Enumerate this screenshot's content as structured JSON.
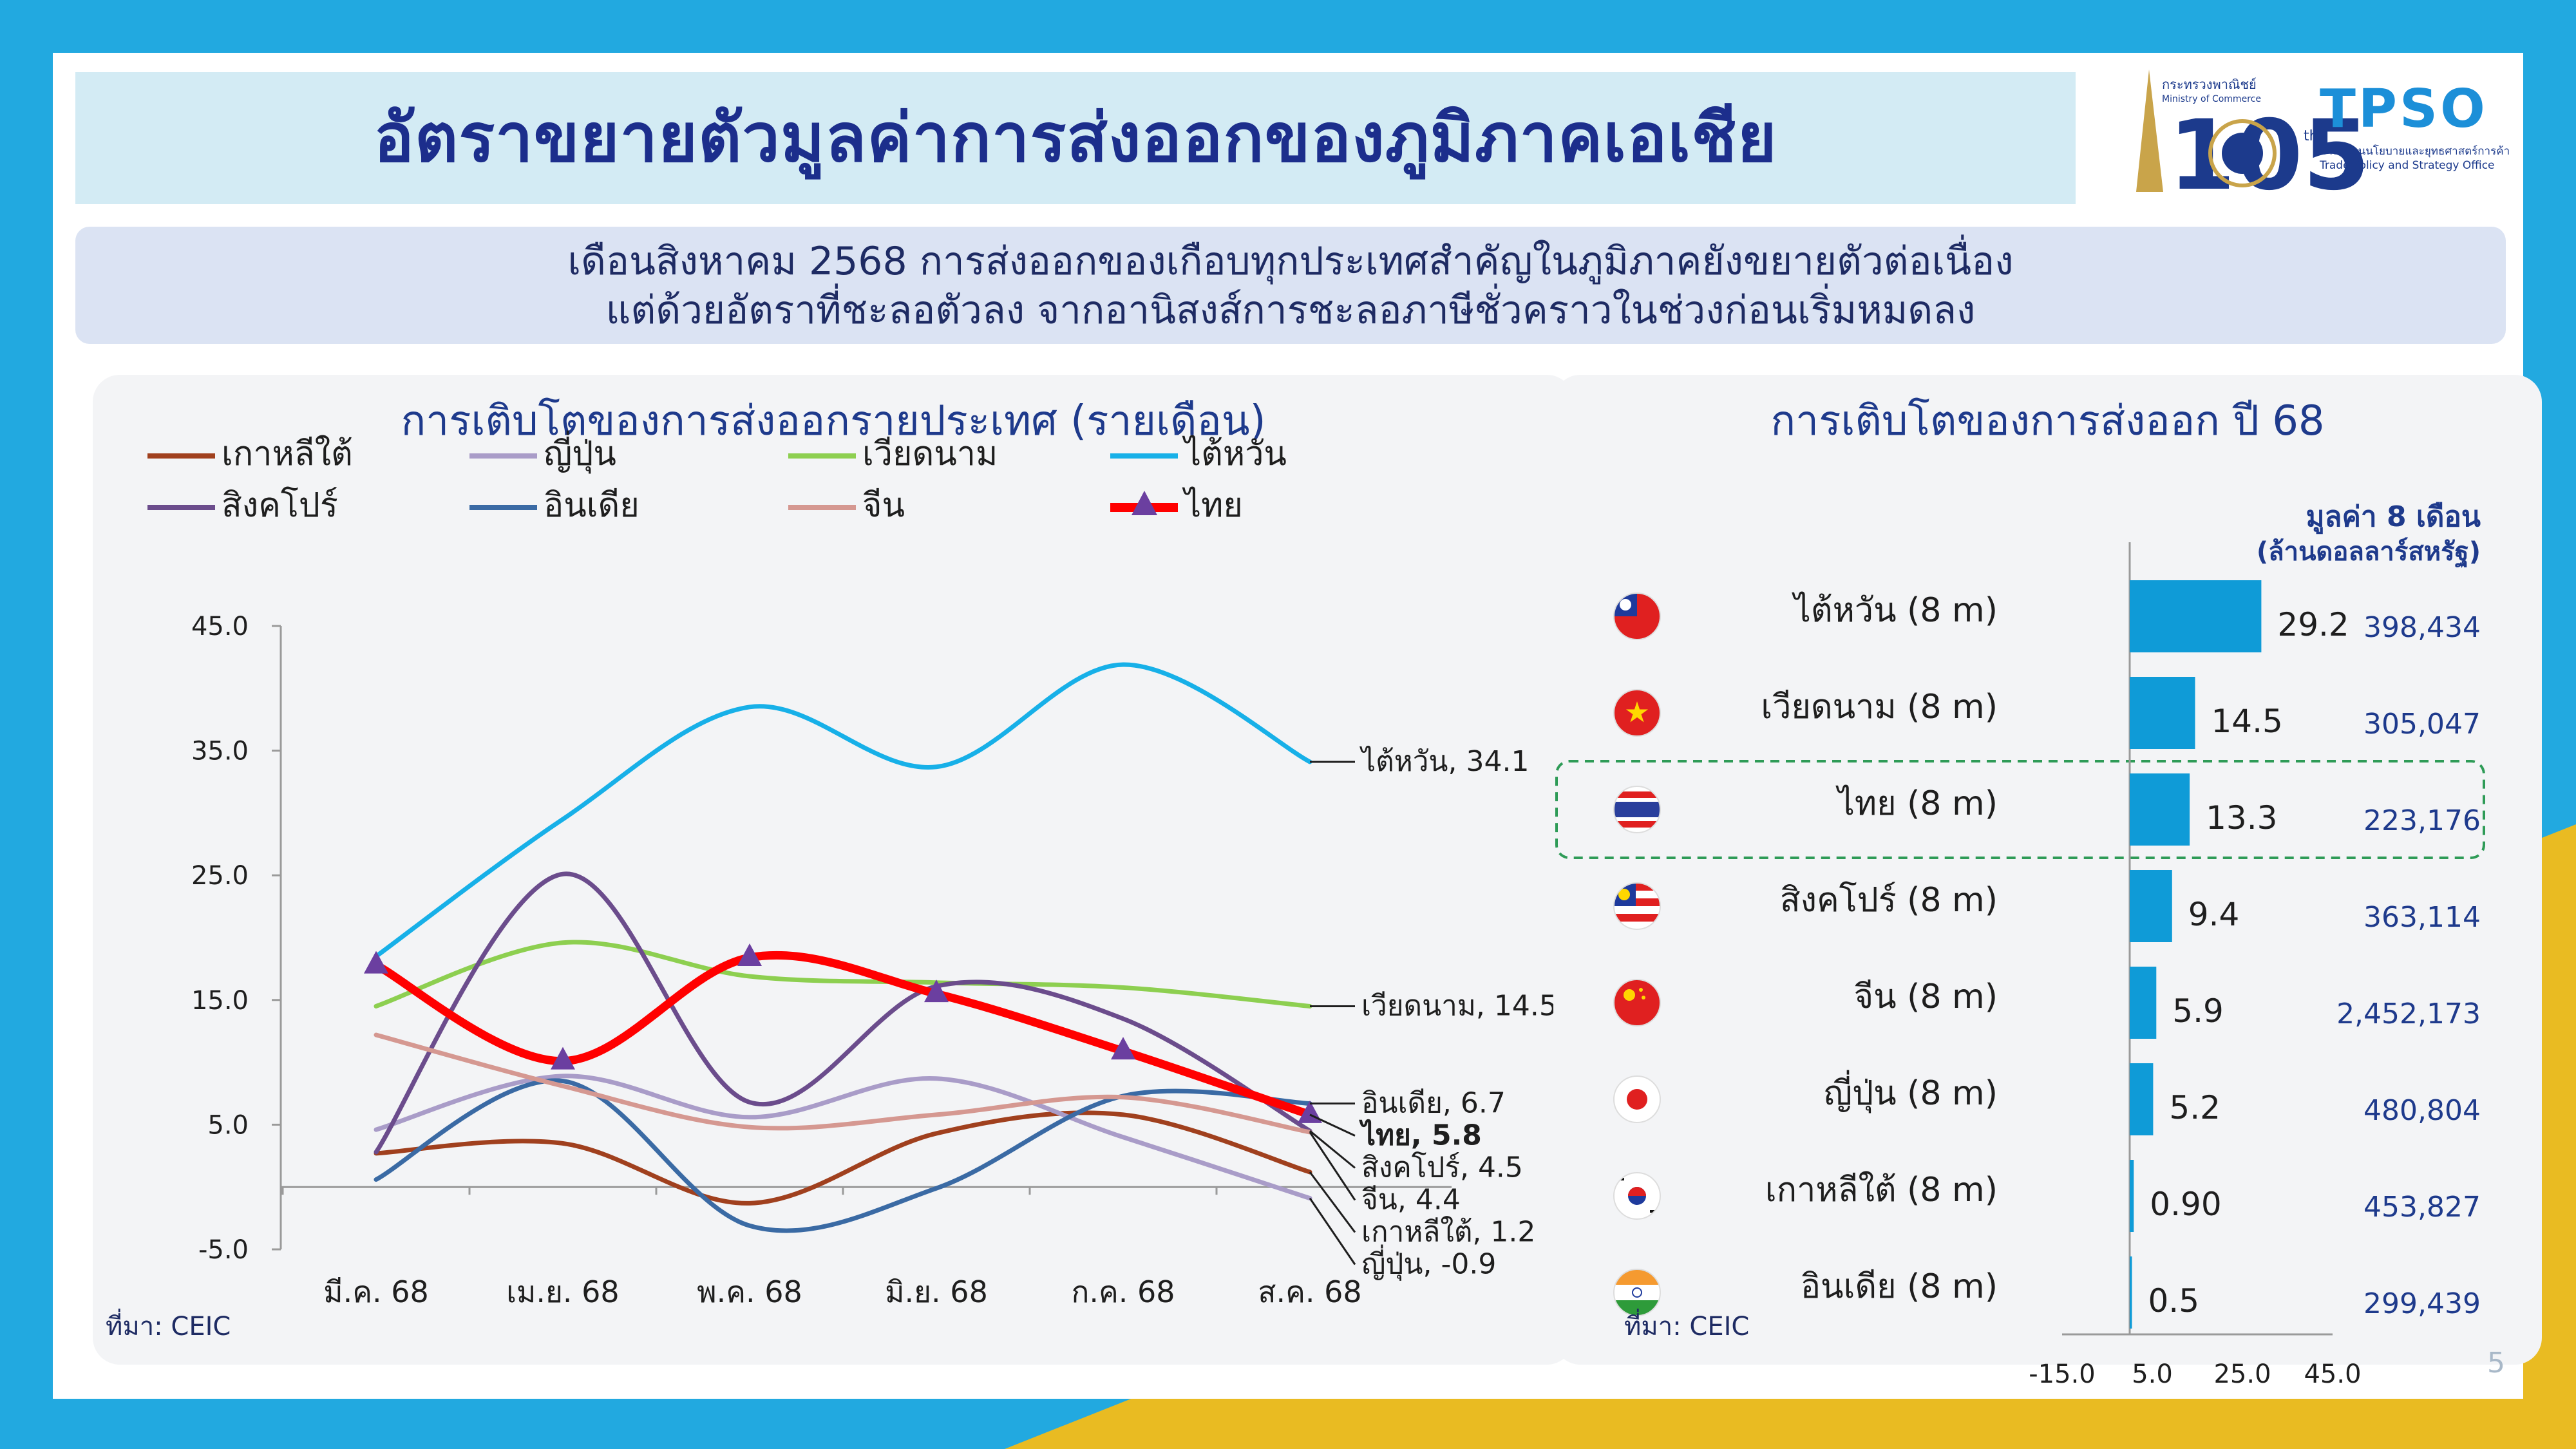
{
  "title": "อัตราขยายตัวมูลค่าการส่งออกของภูมิภาคเอเชีย",
  "logos": {
    "moc": {
      "text": "กระทรวงพาณิชย์",
      "sub": "Ministry of Commerce",
      "number": "105"
    },
    "tpso": {
      "text": "TPSO",
      "sub_th": "สำนักงานนโยบายและยุทธศาสตร์การค้า",
      "sub_en": "Trade Policy and Strategy Office"
    }
  },
  "subtitle": {
    "line1": "เดือนสิงหาคม 2568 การส่งออกของเกือบทุกประเทศสำคัญในภูมิภาคยังขยายตัวต่อเนื่อง",
    "line2": "แต่ด้วยอัตราที่ชะลอตัวลง จากอานิสงส์การชะลอภาษีชั่วคราวในช่วงก่อนเริ่มหมดลง"
  },
  "left": {
    "source": "ที่มา: CEIC"
  },
  "right": {
    "source": "ที่มา: CEIC",
    "value_header_1": "มูลค่า 8 เดือน",
    "value_header_2": "(ล้านดอลลาร์สหรัฐ)"
  },
  "page_number": "5",
  "colors": {
    "navy": "#1e3a8c",
    "bar": "#0f9bd7",
    "highlight_border": "#2e9b57",
    "yellow": "#e9bb22",
    "frame": "#22a9e0"
  },
  "chart_data": [
    {
      "type": "line",
      "title": "การเติบโตของการส่งออกรายประเทศ (รายเดือน)",
      "categories": [
        "มี.ค. 68",
        "เม.ย. 68",
        "พ.ค. 68",
        "มิ.ย. 68",
        "ก.ค. 68",
        "ส.ค. 68"
      ],
      "ylim": [
        -5,
        45
      ],
      "yticks": [
        "45.0",
        "35.0",
        "25.0",
        "15.0",
        "5.0",
        "-5.0"
      ],
      "grid": false,
      "legend_position": "top",
      "series": [
        {
          "name": "เกาหลีใต้",
          "color": "#a0401e",
          "values": [
            2.7,
            3.5,
            -1.3,
            4.3,
            5.8,
            1.2
          ],
          "end_label": "เกาหลีใต้, 1.2"
        },
        {
          "name": "ญี่ปุ่น",
          "color": "#a99cc8",
          "values": [
            4.6,
            8.9,
            5.6,
            8.7,
            4.0,
            -0.9
          ],
          "end_label": "ญี่ปุ่น, -0.9"
        },
        {
          "name": "เวียดนาม",
          "color": "#8dcf50",
          "values": [
            14.5,
            19.6,
            16.9,
            16.4,
            16.0,
            14.5
          ],
          "end_label": "เวียดนาม, 14.5"
        },
        {
          "name": "ไต้หวัน",
          "color": "#17b0e8",
          "values": [
            18.5,
            29.5,
            38.5,
            33.7,
            41.9,
            34.1
          ],
          "end_label": "ไต้หวัน, 34.1"
        },
        {
          "name": "สิงคโปร์",
          "color": "#6b4c8c",
          "values": [
            2.8,
            25.1,
            6.8,
            16.1,
            13.5,
            4.5
          ],
          "end_label": "สิงคโปร์, 4.5"
        },
        {
          "name": "อินเดีย",
          "color": "#3a6aa4",
          "values": [
            0.6,
            8.5,
            -3.1,
            -0.1,
            7.3,
            6.7
          ],
          "end_label": "อินเดีย, 6.7"
        },
        {
          "name": "จีน",
          "color": "#d59891",
          "values": [
            12.2,
            8.1,
            4.8,
            5.8,
            7.2,
            4.4
          ],
          "end_label": "จีน, 4.4"
        },
        {
          "name": "ไทย",
          "color": "#ff0000",
          "marker": "#6b3fa0",
          "values": [
            17.8,
            10.1,
            18.4,
            15.5,
            10.9,
            5.8
          ],
          "end_label": "ไทย, 5.8"
        }
      ]
    },
    {
      "type": "bar",
      "orientation": "horizontal",
      "title": "การเติบโตของการส่งออก ปี 68",
      "xlim": [
        -15,
        45
      ],
      "xticks": [
        "-15.0",
        "5.0",
        "25.0",
        "45.0"
      ],
      "highlight": "ไทย (8 m)",
      "categories": [
        "ไต้หวัน (8 m)",
        "เวียดนาม (8 m)",
        "ไทย (8 m)",
        "สิงคโปร์ (8 m)",
        "จีน (8 m)",
        "ญี่ปุ่น (8 m)",
        "เกาหลีใต้ (8 m)",
        "อินเดีย (8 m)"
      ],
      "flags": [
        "taiwan-flag",
        "vietnam-flag",
        "thailand-flag",
        "singapore-flag",
        "china-flag",
        "japan-flag",
        "south-korea-flag",
        "india-flag"
      ],
      "values": [
        29.2,
        14.5,
        13.3,
        9.4,
        5.9,
        5.2,
        0.9,
        0.5
      ],
      "value_labels": [
        "29.2",
        "14.5",
        "13.3",
        "9.4",
        "5.9",
        "5.2",
        "0.90",
        "0.5"
      ],
      "export_values": [
        "398,434",
        "305,047",
        "223,176",
        "363,114",
        "2,452,173",
        "480,804",
        "453,827",
        "299,439"
      ]
    }
  ]
}
